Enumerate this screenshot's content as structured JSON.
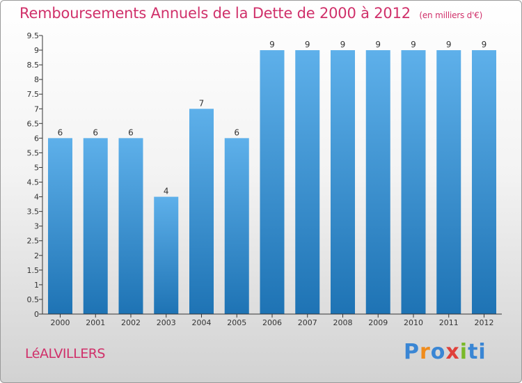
{
  "title": "Remboursements Annuels de la Dette de 2000 à 2012",
  "unit": "(en milliers d'€)",
  "place": "LéALVILLERS",
  "brand": "Proxiti",
  "colors": {
    "title": "#d0306a",
    "bar_light": "#5eb0ea",
    "bar_dark": "#1e73b4",
    "axis": "#333333"
  },
  "chart_data": {
    "type": "bar",
    "categories": [
      "2000",
      "2001",
      "2002",
      "2003",
      "2004",
      "2005",
      "2006",
      "2007",
      "2008",
      "2009",
      "2010",
      "2011",
      "2012"
    ],
    "values": [
      6,
      6,
      6,
      4,
      7,
      6,
      9,
      9,
      9,
      9,
      9,
      9,
      9
    ],
    "data_labels": [
      "6",
      "6",
      "6",
      "4",
      "7",
      "6",
      "9",
      "9",
      "9",
      "9",
      "9",
      "9",
      "9"
    ],
    "ylim": [
      0,
      9.5
    ],
    "yticks": [
      0,
      0.5,
      1,
      1.5,
      2,
      2.5,
      3,
      3.5,
      4,
      4.5,
      5,
      5.5,
      6,
      6.5,
      7,
      7.5,
      8,
      8.5,
      9,
      9.5
    ],
    "ytick_labels": [
      "0",
      "0.5",
      "1",
      "1.5",
      "2",
      "2.5",
      "3",
      "3.5",
      "4",
      "4.5",
      "5",
      "5.5",
      "6",
      "6.5",
      "7",
      "7.5",
      "8",
      "8.5",
      "9",
      "9.5"
    ],
    "grid": false,
    "xlabel": "",
    "ylabel": ""
  }
}
